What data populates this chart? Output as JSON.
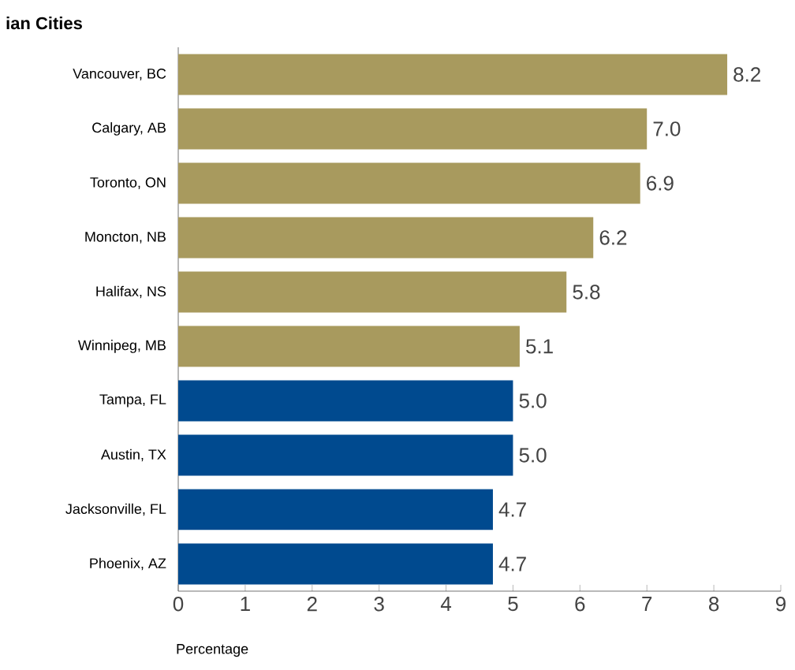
{
  "chart_data": {
    "type": "bar",
    "orientation": "horizontal",
    "title": "ian Cities",
    "xlabel": "Percentage",
    "categories": [
      "Vancouver, BC",
      "Calgary, AB",
      "Toronto, ON",
      "Moncton, NB",
      "Halifax, NS",
      "Winnipeg, MB",
      "Tampa, FL",
      "Austin, TX",
      "Jacksonville, FL",
      "Phoenix, AZ"
    ],
    "values": [
      8.2,
      7.0,
      6.9,
      6.2,
      5.8,
      5.1,
      5.0,
      5.0,
      4.7,
      4.7
    ],
    "colors": [
      "#a89a5e",
      "#a89a5e",
      "#a89a5e",
      "#a89a5e",
      "#a89a5e",
      "#a89a5e",
      "#004a8f",
      "#004a8f",
      "#004a8f",
      "#004a8f"
    ],
    "value_labels": [
      "8.2",
      "7.0",
      "6.9",
      "6.2",
      "5.8",
      "5.1",
      "5.0",
      "5.0",
      "4.7",
      "4.7"
    ],
    "xlim": [
      0,
      9
    ],
    "xticks": [
      0,
      1,
      2,
      3,
      4,
      5,
      6,
      7,
      8,
      9
    ]
  }
}
